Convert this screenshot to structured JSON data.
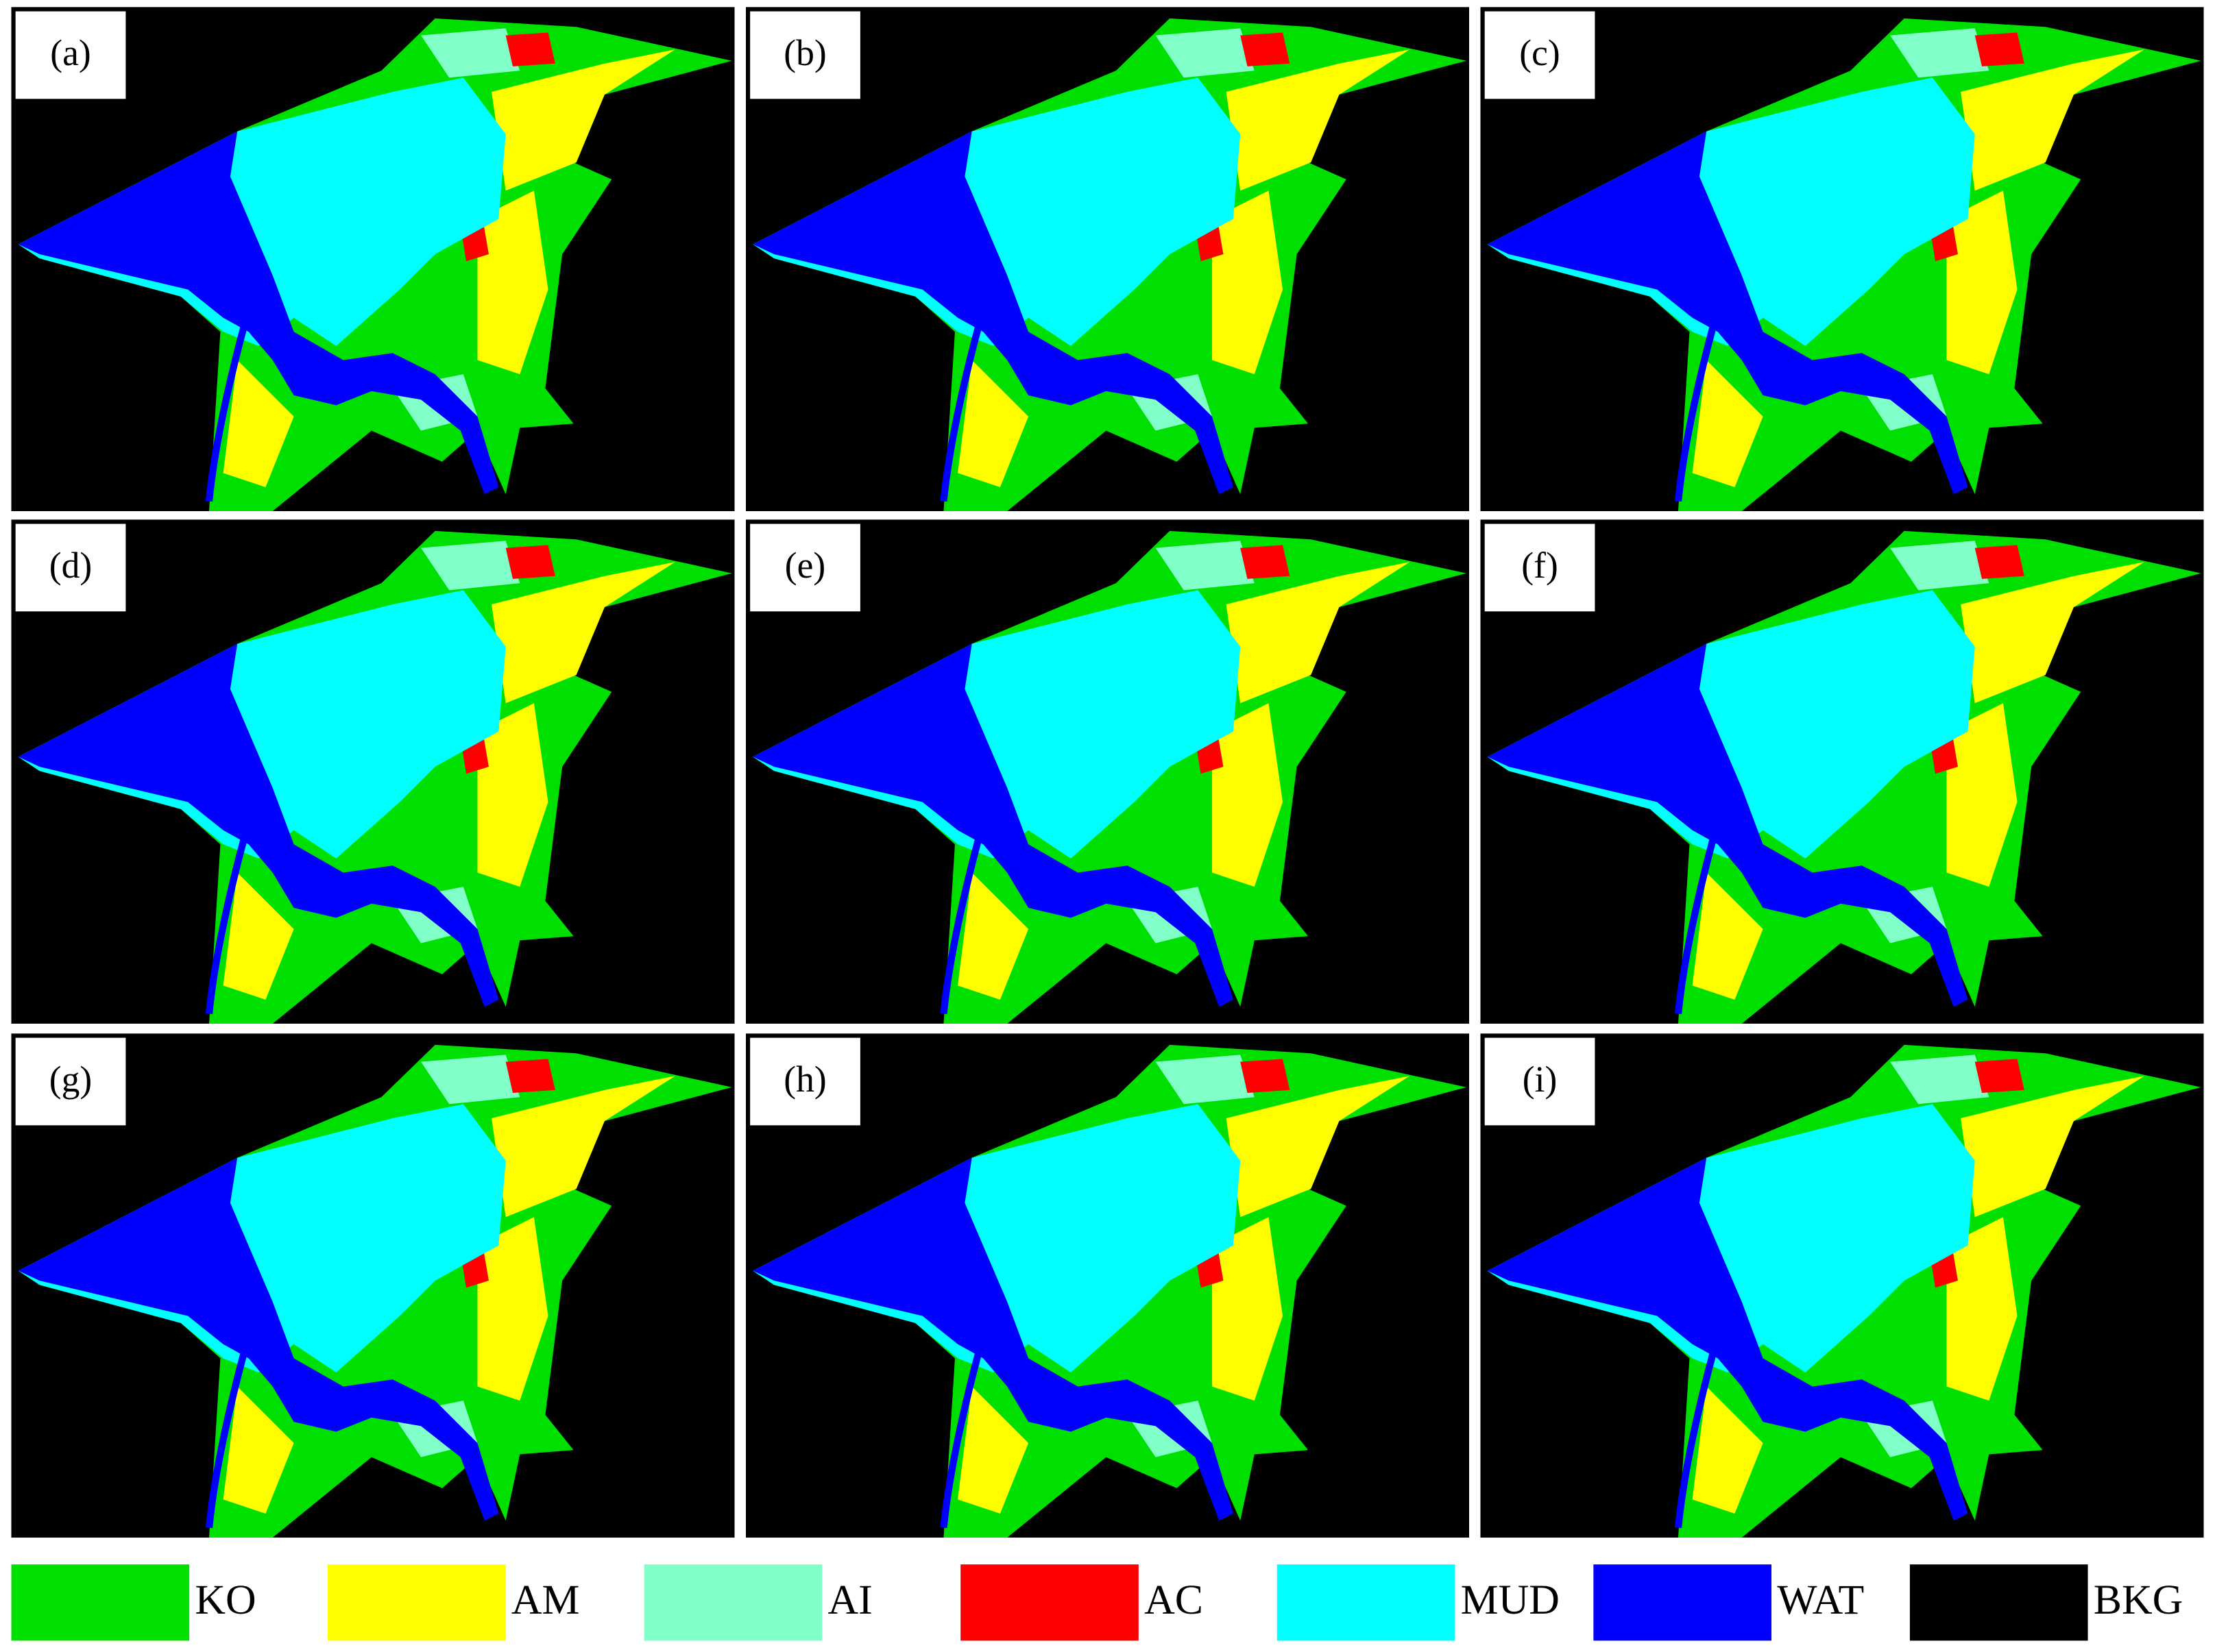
{
  "panels": [
    {
      "label": "(a)"
    },
    {
      "label": "(b)"
    },
    {
      "label": "(c)"
    },
    {
      "label": "(d)"
    },
    {
      "label": "(e)"
    },
    {
      "label": "(f)"
    },
    {
      "label": "(g)"
    },
    {
      "label": "(h)"
    },
    {
      "label": "(i)"
    }
  ],
  "legend": {
    "items": [
      {
        "name": "KO",
        "color": "#00e000"
      },
      {
        "name": "AM",
        "color": "#ffff00"
      },
      {
        "name": "AI",
        "color": "#80ffc8"
      },
      {
        "name": "AC",
        "color": "#ff0000"
      },
      {
        "name": "MUD",
        "color": "#00ffff"
      },
      {
        "name": "WAT",
        "color": "#0000ff"
      },
      {
        "name": "BKG",
        "color": "#000000"
      }
    ]
  }
}
